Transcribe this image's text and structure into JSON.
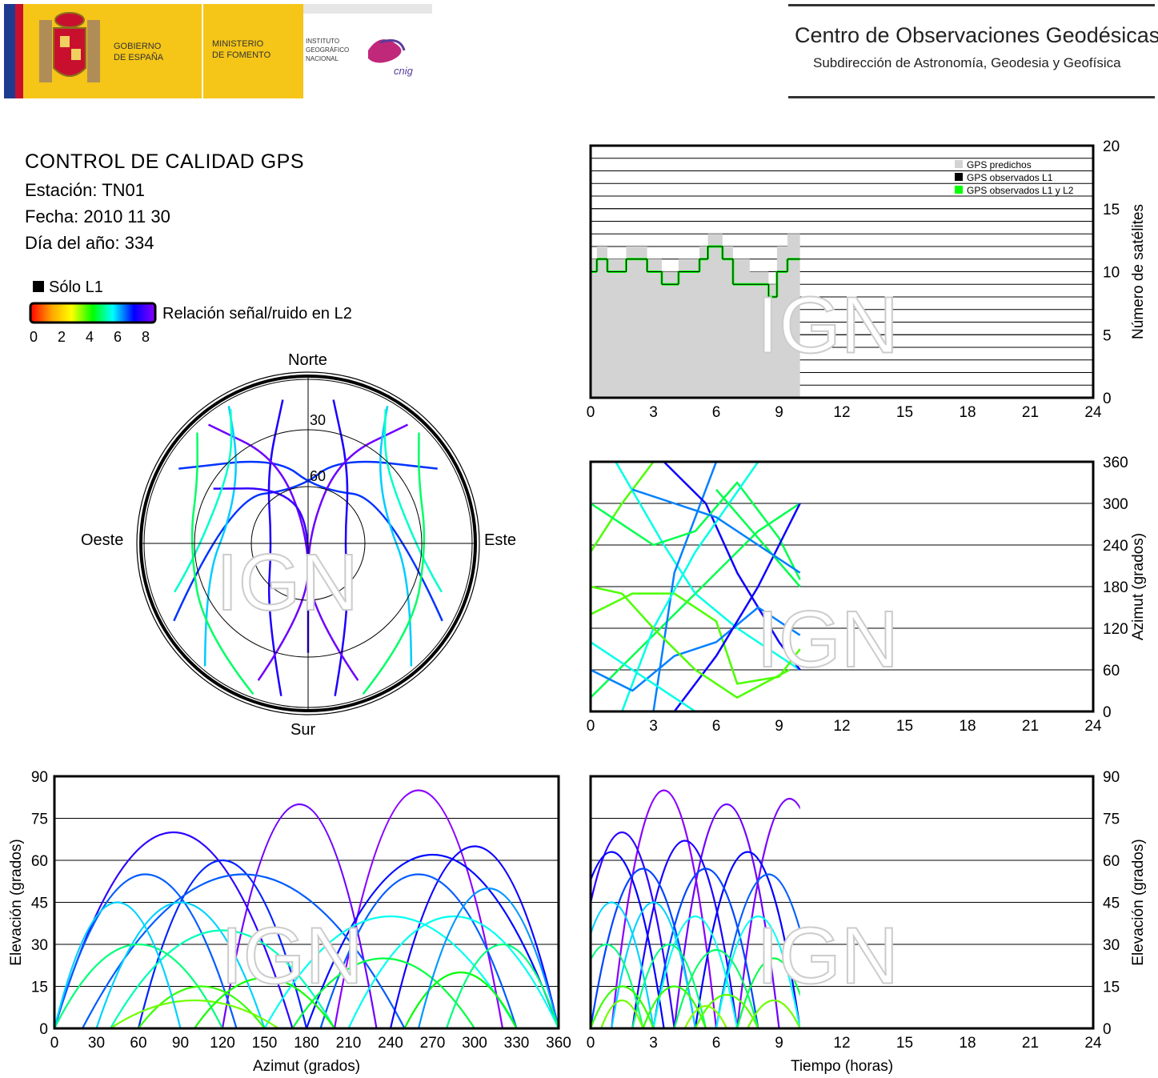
{
  "header": {
    "gov_line1": "GOBIERNO",
    "gov_line2": "DE ESPAÑA",
    "min_line1": "MINISTERIO",
    "min_line2": "DE FOMENTO",
    "ign_line1": "INSTITUTO",
    "ign_line2": "GEOGRÁFICO",
    "ign_line3": "NACIONAL",
    "cnig": "cnig",
    "center_title": "Centro de Observaciones Geodésicas",
    "center_subtitle": "Subdirección de Astronomía, Geodesia y Geofísica"
  },
  "info": {
    "title": "CONTROL DE CALIDAD GPS",
    "station": "Estación: TN01",
    "date": "Fecha: 2010 11 30",
    "doy": "Día del año: 334"
  },
  "legend": {
    "only_l1": "Sólo L1",
    "snr_label": "Relación señal/ruido en L2",
    "snr_ticks": [
      "0",
      "2",
      "4",
      "6",
      "8"
    ]
  },
  "colors": {
    "predicted": "#d3d3d3",
    "observed_l1": "#000000",
    "observed_l1l2": "#00ff00",
    "snr_scale": [
      "#ff0000",
      "#ffa500",
      "#ffff00",
      "#00ff00",
      "#00ffff",
      "#0000ff",
      "#8a00ff"
    ]
  },
  "watermark": "IGN",
  "chart_data": [
    {
      "type": "polar-skyplot",
      "labels": {
        "north": "Norte",
        "south": "Sur",
        "east": "Este",
        "west": "Oeste"
      },
      "ring_labels": [
        "30",
        "60"
      ],
      "rings_elevation": [
        0,
        30,
        60
      ]
    },
    {
      "type": "area",
      "ylabel": "Número de satélites",
      "xlim": [
        0,
        24
      ],
      "ylim": [
        0,
        20
      ],
      "xticks": [
        "0",
        "3",
        "6",
        "9",
        "12",
        "15",
        "18",
        "21",
        "24"
      ],
      "yticks": [
        "0",
        "5",
        "10",
        "15",
        "20"
      ],
      "legend": [
        "GPS predichos",
        "GPS observados L1",
        "GPS observados L1 y L2"
      ],
      "predicted": {
        "x": [
          0,
          0.3,
          0.8,
          1.7,
          2.7,
          3.4,
          4.2,
          5.2,
          5.6,
          6.3,
          6.8,
          7.6,
          8.5,
          8.9,
          9.4,
          10
        ],
        "y": [
          11,
          12,
          11,
          12,
          11,
          10,
          11,
          12,
          13,
          12,
          11,
          10,
          9,
          12,
          13,
          13
        ]
      },
      "observed": {
        "x": [
          0,
          0.3,
          0.8,
          1.7,
          2.7,
          3.4,
          4.2,
          5.2,
          5.6,
          6.3,
          6.8,
          7.6,
          8.5,
          8.9,
          9.4,
          10
        ],
        "y": [
          10,
          11,
          10,
          11,
          10,
          9,
          10,
          11,
          12,
          11,
          9,
          9,
          8,
          10,
          11,
          11
        ]
      },
      "data_end_hour": 10
    },
    {
      "type": "scatter",
      "ylabel": "Azimut (grados)",
      "xlim": [
        0,
        24
      ],
      "ylim": [
        0,
        360
      ],
      "xticks": [
        "0",
        "3",
        "6",
        "9",
        "12",
        "15",
        "18",
        "21",
        "24"
      ],
      "yticks": [
        "0",
        "60",
        "120",
        "180",
        "240",
        "300",
        "360"
      ]
    },
    {
      "type": "scatter",
      "xlabel": "Azimut (grados)",
      "ylabel": "Elevación (grados)",
      "xlim": [
        0,
        360
      ],
      "ylim": [
        0,
        90
      ],
      "xticks": [
        "0",
        "30",
        "60",
        "90",
        "120",
        "150",
        "180",
        "210",
        "240",
        "270",
        "300",
        "330",
        "360"
      ],
      "yticks": [
        "0",
        "15",
        "30",
        "45",
        "60",
        "75",
        "90"
      ]
    },
    {
      "type": "scatter",
      "xlabel": "Tiempo (horas)",
      "ylabel": "Elevación (grados)",
      "xlim": [
        0,
        24
      ],
      "ylim": [
        0,
        90
      ],
      "xticks": [
        "0",
        "3",
        "6",
        "9",
        "12",
        "15",
        "18",
        "21",
        "24"
      ],
      "yticks": [
        "0",
        "15",
        "30",
        "45",
        "60",
        "75",
        "90"
      ]
    }
  ]
}
